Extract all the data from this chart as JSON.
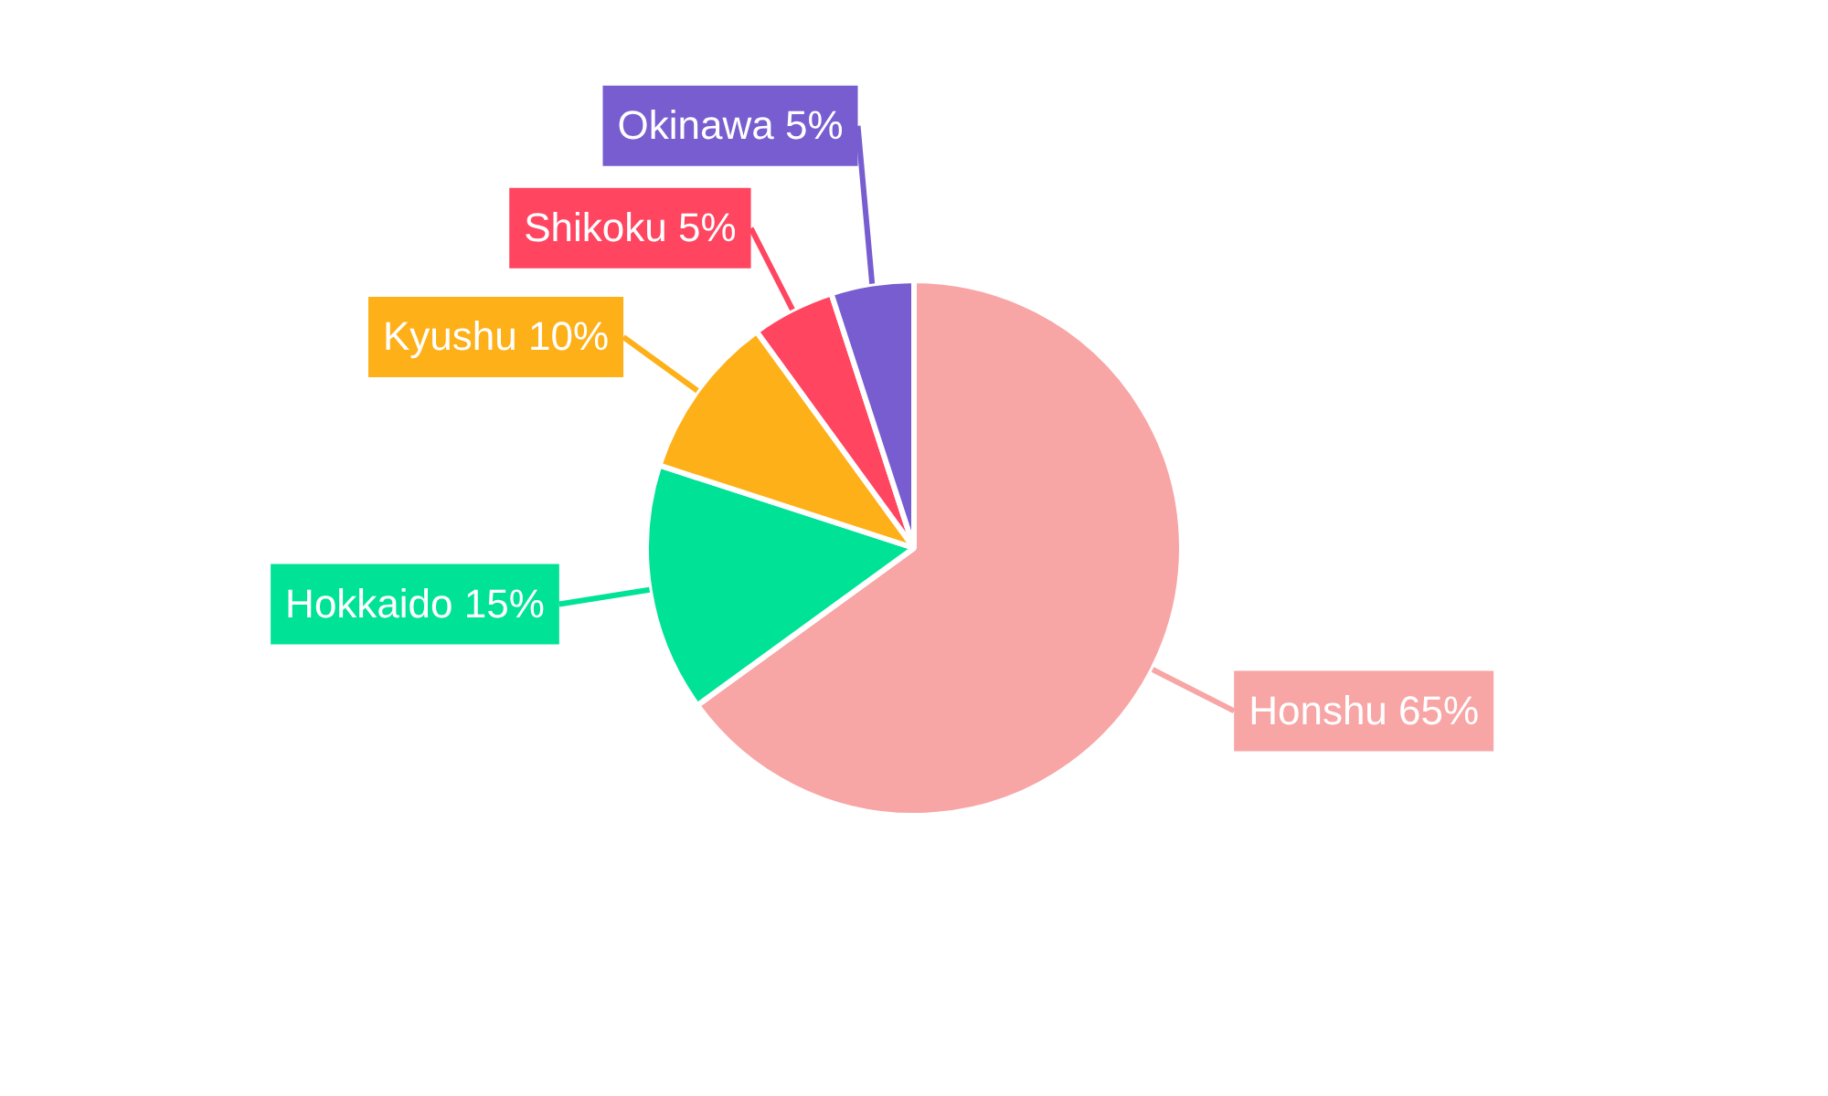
{
  "chart_data": {
    "type": "pie",
    "categories": [
      "Honshu",
      "Hokkaido",
      "Kyushu",
      "Shikoku",
      "Okinawa"
    ],
    "values": [
      65,
      15,
      10,
      5,
      5
    ],
    "value_labels": [
      "65%",
      "15%",
      "10%",
      "5%",
      "5%"
    ],
    "colors": [
      "#f8a5a5",
      "#00e396",
      "#feb019",
      "#ff4560",
      "#775dd0"
    ],
    "legend": false
  }
}
